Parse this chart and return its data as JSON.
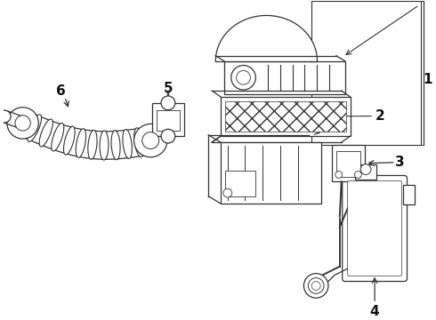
{
  "bg_color": "#ffffff",
  "lc": "#333333",
  "lc2": "#444444",
  "figsize": [
    4.9,
    3.6
  ],
  "dpi": 100,
  "label_fs": 9,
  "label_bold": true
}
